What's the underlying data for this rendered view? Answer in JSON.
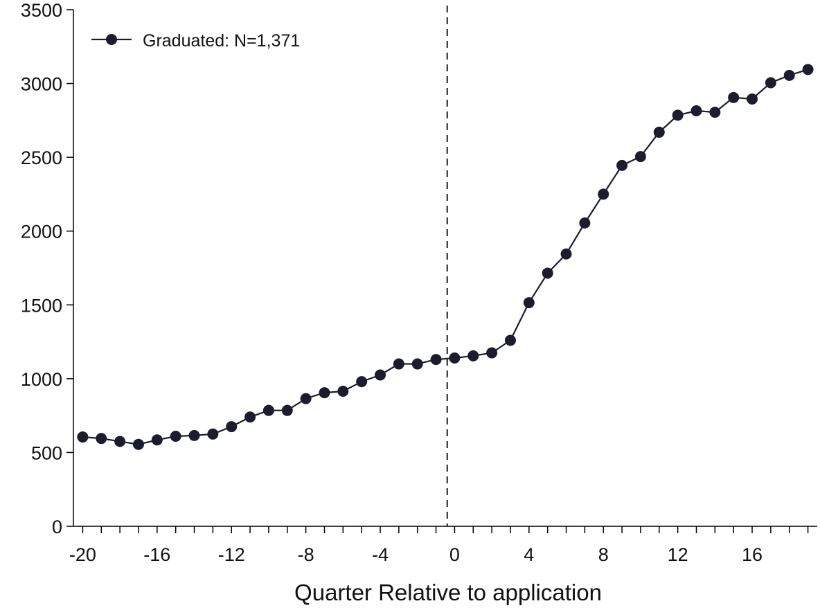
{
  "chart_data": {
    "type": "line",
    "title": "",
    "xlabel": "Quarter Relative to application",
    "ylabel": "",
    "xlim": [
      -20.5,
      19.5
    ],
    "ylim": [
      0,
      3500
    ],
    "x_ticks": [
      -20,
      -16,
      -12,
      -8,
      -4,
      0,
      4,
      8,
      12,
      16
    ],
    "x_tick_labels": [
      "-20",
      "-16",
      "-12",
      "-8",
      "-4",
      "0",
      "4",
      "8",
      "12",
      "16"
    ],
    "y_ticks": [
      0,
      500,
      1000,
      1500,
      2000,
      2500,
      3000,
      3500
    ],
    "y_tick_labels": [
      "0",
      "500",
      "1000",
      "1500",
      "2000",
      "2500",
      "3000",
      "3500"
    ],
    "reference_line_x": -0.4,
    "grid": false,
    "legend_position": "top-left",
    "series": [
      {
        "name": "Graduated: N=1,371",
        "color": "#1b1c2e",
        "marker": "circle",
        "x": [
          -20,
          -19,
          -18,
          -17,
          -16,
          -15,
          -14,
          -13,
          -12,
          -11,
          -10,
          -9,
          -8,
          -7,
          -6,
          -5,
          -4,
          -3,
          -2,
          -1,
          0,
          1,
          2,
          3,
          4,
          5,
          6,
          7,
          8,
          9,
          10,
          11,
          12,
          13,
          14,
          15,
          16,
          17,
          18,
          19
        ],
        "values": [
          605,
          595,
          575,
          555,
          585,
          610,
          615,
          625,
          675,
          740,
          785,
          785,
          865,
          905,
          915,
          980,
          1025,
          1100,
          1100,
          1130,
          1140,
          1155,
          1175,
          1260,
          1515,
          1715,
          1845,
          2055,
          2250,
          2445,
          2505,
          2670,
          2785,
          2815,
          2805,
          2905,
          2895,
          3005,
          3055,
          3095
        ]
      }
    ]
  }
}
